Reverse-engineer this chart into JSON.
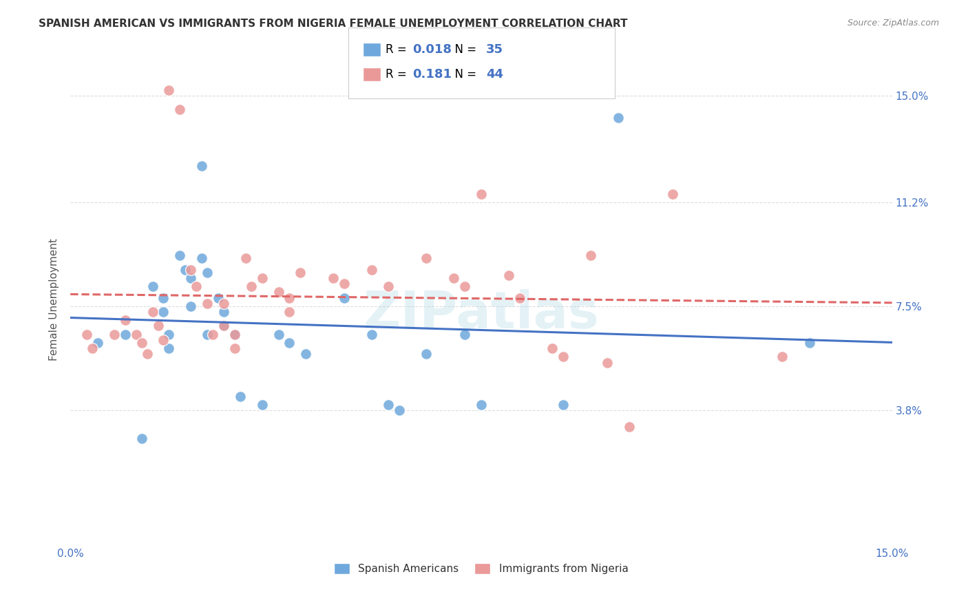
{
  "title": "SPANISH AMERICAN VS IMMIGRANTS FROM NIGERIA FEMALE UNEMPLOYMENT CORRELATION CHART",
  "source": "Source: ZipAtlas.com",
  "ylabel": "Female Unemployment",
  "x_tick_positions": [
    0.0,
    0.03,
    0.06,
    0.09,
    0.12,
    0.15
  ],
  "x_tick_labels": [
    "0.0%",
    "",
    "",
    "",
    "",
    "15.0%"
  ],
  "y_ticks": [
    0.038,
    0.075,
    0.112,
    0.15
  ],
  "y_tick_labels": [
    "3.8%",
    "7.5%",
    "11.2%",
    "15.0%"
  ],
  "xlim": [
    0.0,
    0.15
  ],
  "ylim": [
    -0.01,
    0.165
  ],
  "legend_v1": "0.018",
  "legend_n1v": "35",
  "legend_v2": "0.181",
  "legend_n2v": "44",
  "color_blue": "#6fa8dc",
  "color_pink": "#ea9999",
  "color_blue_accent": "#4472c4",
  "color_pink_line": "#e06666",
  "watermark": "ZIPatlas",
  "spanish_x": [
    0.005,
    0.01,
    0.013,
    0.015,
    0.017,
    0.017,
    0.018,
    0.018,
    0.02,
    0.021,
    0.022,
    0.022,
    0.024,
    0.024,
    0.025,
    0.025,
    0.027,
    0.028,
    0.028,
    0.03,
    0.031,
    0.035,
    0.038,
    0.04,
    0.043,
    0.05,
    0.055,
    0.058,
    0.06,
    0.065,
    0.072,
    0.075,
    0.09,
    0.1,
    0.135
  ],
  "spanish_y": [
    0.062,
    0.065,
    0.028,
    0.082,
    0.078,
    0.073,
    0.065,
    0.06,
    0.093,
    0.088,
    0.085,
    0.075,
    0.125,
    0.092,
    0.087,
    0.065,
    0.078,
    0.073,
    0.068,
    0.065,
    0.043,
    0.04,
    0.065,
    0.062,
    0.058,
    0.078,
    0.065,
    0.04,
    0.038,
    0.058,
    0.065,
    0.04,
    0.04,
    0.142,
    0.062
  ],
  "nigeria_x": [
    0.003,
    0.004,
    0.008,
    0.01,
    0.012,
    0.013,
    0.014,
    0.015,
    0.016,
    0.017,
    0.018,
    0.02,
    0.022,
    0.023,
    0.025,
    0.026,
    0.028,
    0.028,
    0.03,
    0.03,
    0.032,
    0.033,
    0.035,
    0.038,
    0.04,
    0.04,
    0.042,
    0.048,
    0.05,
    0.055,
    0.058,
    0.065,
    0.07,
    0.072,
    0.075,
    0.08,
    0.082,
    0.088,
    0.09,
    0.095,
    0.098,
    0.102,
    0.11,
    0.13
  ],
  "nigeria_y": [
    0.065,
    0.06,
    0.065,
    0.07,
    0.065,
    0.062,
    0.058,
    0.073,
    0.068,
    0.063,
    0.152,
    0.145,
    0.088,
    0.082,
    0.076,
    0.065,
    0.076,
    0.068,
    0.065,
    0.06,
    0.092,
    0.082,
    0.085,
    0.08,
    0.078,
    0.073,
    0.087,
    0.085,
    0.083,
    0.088,
    0.082,
    0.092,
    0.085,
    0.082,
    0.115,
    0.086,
    0.078,
    0.06,
    0.057,
    0.093,
    0.055,
    0.032,
    0.115,
    0.057
  ],
  "background_color": "#ffffff",
  "grid_color": "#dddddd",
  "title_color": "#333333",
  "axis_label_color": "#4472c4"
}
